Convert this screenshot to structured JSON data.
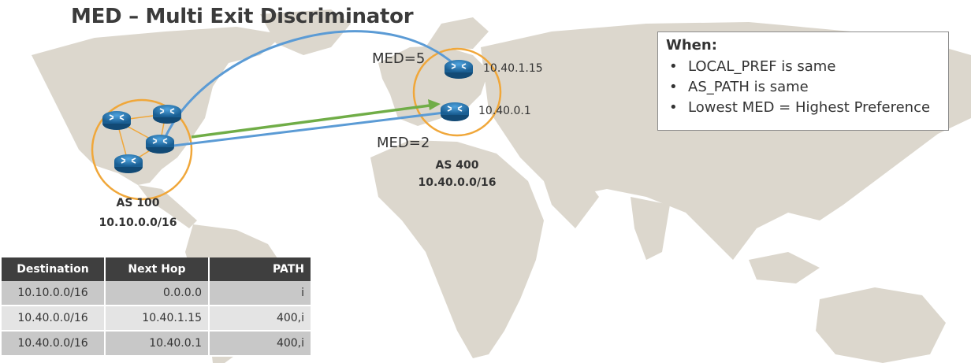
{
  "title": "MED – Multi Exit Discriminator",
  "colors": {
    "map_land": "#dcd7cd",
    "as_circle": "#f0a73a",
    "link_blue": "#5b9bd5",
    "link_green": "#70ad47",
    "router_blue": "#1f6fa8",
    "table_header": "#3f3f3f"
  },
  "as100": {
    "name": "AS 100",
    "prefix": "10.10.0.0/16"
  },
  "as400": {
    "name": "AS 400",
    "prefix": "10.40.0.0/16"
  },
  "routers_as400": {
    "upper_ip": "10.40.1.15",
    "lower_ip": "10.40.0.1"
  },
  "med_labels": {
    "upper": "MED=5",
    "lower": "MED=2"
  },
  "when_box": {
    "heading": "When:",
    "items": [
      "LOCAL_PREF is same",
      "AS_PATH is same",
      "Lowest MED = Highest Preference"
    ]
  },
  "table": {
    "headers": [
      "Destination",
      "Next Hop",
      "PATH"
    ],
    "rows": [
      [
        "10.10.0.0/16",
        "0.0.0.0",
        "i"
      ],
      [
        "10.40.0.0/16",
        "10.40.1.15",
        "400,i"
      ],
      [
        "10.40.0.0/16",
        "10.40.0.1",
        "400,i"
      ]
    ]
  },
  "icons": [
    "router-icon",
    "world-map"
  ]
}
